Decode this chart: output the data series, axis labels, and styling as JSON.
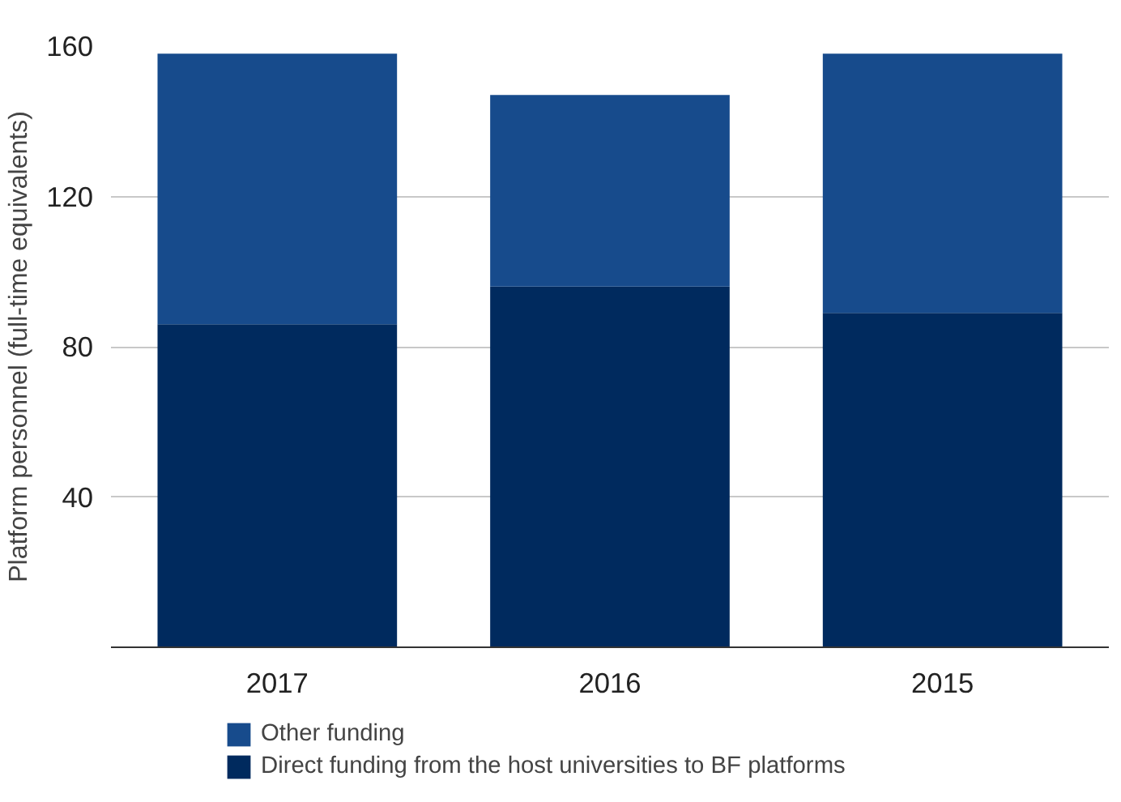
{
  "chart_data": {
    "type": "bar",
    "stacked": true,
    "ylabel": "Platform personnel (full-time equivalents)",
    "categories": [
      "2017",
      "2016",
      "2015"
    ],
    "series": [
      {
        "name": "Direct funding from the host universities to BF platforms",
        "color": "#002a5e",
        "values": [
          86,
          96,
          89
        ]
      },
      {
        "name": "Other funding",
        "color": "#174b8c",
        "values": [
          72,
          51,
          69
        ]
      }
    ],
    "ylim": [
      0,
      160
    ],
    "yticks": [
      40,
      80,
      120,
      160
    ],
    "grid": "y",
    "legend": "bottom"
  }
}
